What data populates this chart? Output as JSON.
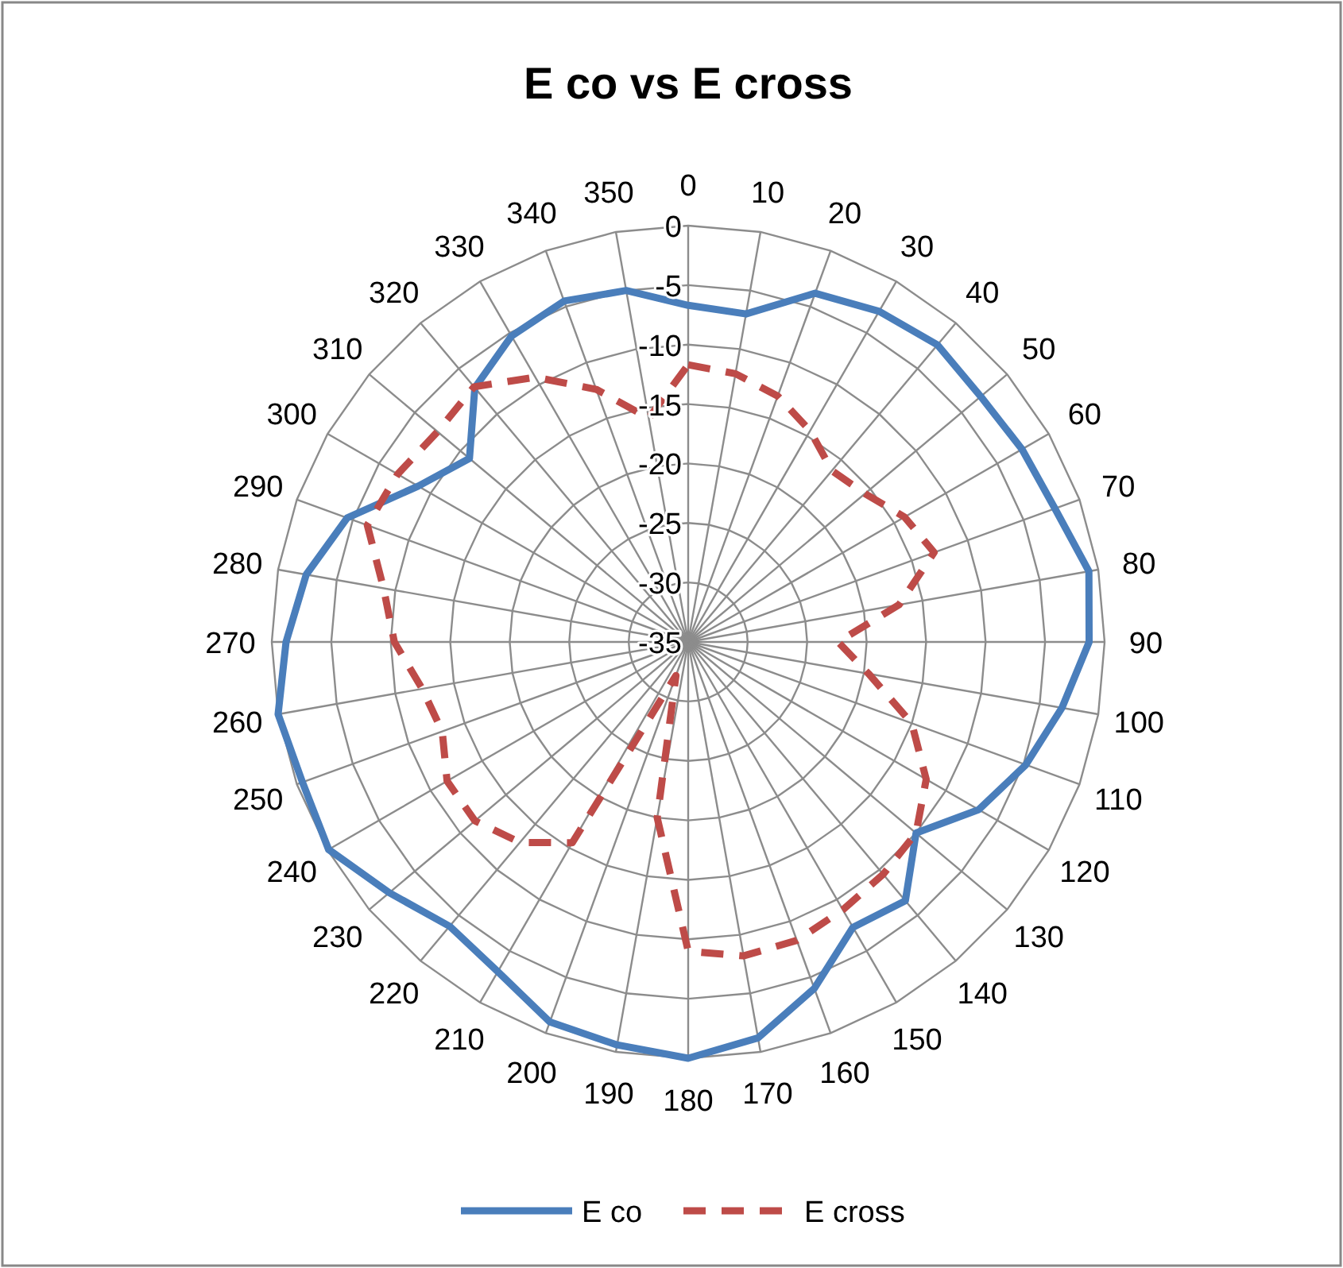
{
  "chart_data": {
    "type": "radar",
    "title": "E co vs E cross",
    "categories": [
      "0",
      "10",
      "20",
      "30",
      "40",
      "50",
      "60",
      "70",
      "80",
      "90",
      "100",
      "110",
      "120",
      "130",
      "140",
      "150",
      "160",
      "170",
      "180",
      "190",
      "200",
      "210",
      "220",
      "230",
      "240",
      "250",
      "260",
      "270",
      "280",
      "290",
      "300",
      "310",
      "320",
      "330",
      "340",
      "350"
    ],
    "series": [
      {
        "name": "E co",
        "color": "#4a7ebb",
        "line_style": "solid",
        "values": [
          -6.7,
          -7,
          -3.8,
          -2.9,
          -2.4,
          -2.9,
          -2.6,
          -2.2,
          -0.8,
          -1.3,
          -3.1,
          -4.8,
          -6.8,
          -10,
          -6.6,
          -7.3,
          -4,
          -1.2,
          0,
          -0.6,
          -1,
          -3,
          -3.8,
          -2.2,
          -0.1,
          -0.5,
          0,
          -1.2,
          -2.4,
          -4.5,
          -8.8,
          -11,
          -7.1,
          -5.3,
          -4.5,
          -5
        ]
      },
      {
        "name": "E cross",
        "color": "#be4b48",
        "line_style": "dashed",
        "values": [
          -11.7,
          -12.1,
          -13,
          -14.5,
          -16.2,
          -15.6,
          -14,
          -13,
          -17,
          -22.4,
          -19.6,
          -15,
          -11.9,
          -10,
          -9.5,
          -9,
          -8.3,
          -8.2,
          -9,
          -20,
          -32,
          -15.5,
          -13,
          -11.6,
          -11.6,
          -13,
          -12.3,
          -10.3,
          -9,
          -6.3,
          -6.8,
          -7.5,
          -7,
          -9.3,
          -12.4,
          -15.9
        ]
      }
    ],
    "ylim": [
      -35,
      0
    ],
    "yticks": [
      -35,
      -30,
      -25,
      -20,
      -15,
      -10,
      -5,
      0
    ],
    "grid": true,
    "legend": "bottom"
  }
}
